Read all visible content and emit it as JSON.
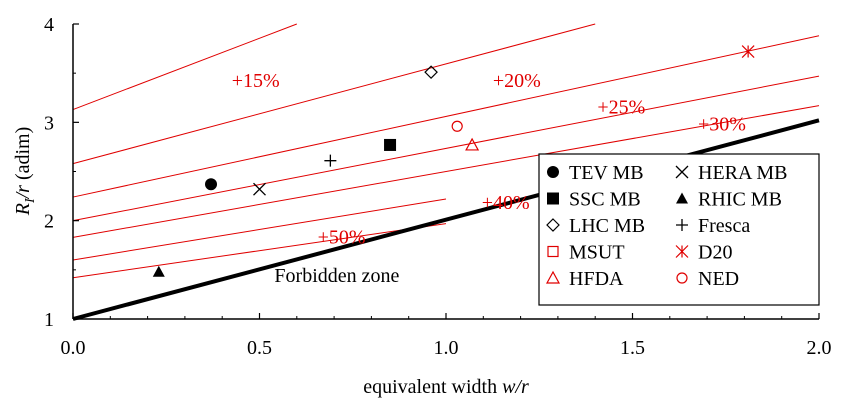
{
  "chart_data": {
    "type": "scatter",
    "xlabel": "equivalent width w/r",
    "xlabel_plain": "equivalent width ",
    "xlabel_italic": "w/r",
    "ylabel_italic": "R",
    "ylabel_sub": "I",
    "ylabel_italic2": "/r",
    "ylabel_rest": " (adim)",
    "xlim": [
      0,
      2
    ],
    "ylim": [
      1,
      4
    ],
    "x_ticks": [
      "0.0",
      "0.5",
      "1.0",
      "1.5",
      "2.0"
    ],
    "x_tick_values": [
      0,
      0.5,
      1,
      1.5,
      2
    ],
    "y_ticks": [
      "1",
      "2",
      "3",
      "4"
    ],
    "y_tick_values": [
      1,
      2,
      3,
      4
    ],
    "grid": false,
    "legend_position": "bottom-right",
    "colors": {
      "curve": "#e00000",
      "black": "#000000"
    },
    "boundary_line": {
      "x": [
        0,
        2.0
      ],
      "y": [
        1,
        3.02
      ]
    },
    "forbidden_zone_label": "Forbidden zone",
    "curves": [
      {
        "x": [
          0,
          0.6
        ],
        "y": [
          3.13,
          4.0
        ]
      },
      {
        "x": [
          0,
          1.4
        ],
        "y": [
          2.58,
          4.0
        ]
      },
      {
        "x": [
          0,
          2.0
        ],
        "y": [
          2.24,
          3.88
        ]
      },
      {
        "x": [
          0,
          2.0
        ],
        "y": [
          2.0,
          3.47
        ]
      },
      {
        "x": [
          0,
          2.0
        ],
        "y": [
          1.83,
          3.17
        ]
      },
      {
        "x": [
          0,
          1.0
        ],
        "y": [
          1.6,
          2.22
        ]
      },
      {
        "x": [
          0,
          1.0
        ],
        "y": [
          1.42,
          1.97
        ]
      }
    ],
    "curve_labels": [
      {
        "text": "+15%",
        "x": 0.49,
        "y": 3.43
      },
      {
        "text": "+20%",
        "x": 1.19,
        "y": 3.43
      },
      {
        "text": "+25%",
        "x": 1.47,
        "y": 3.16
      },
      {
        "text": "+30%",
        "x": 1.74,
        "y": 2.99
      },
      {
        "text": "+40%",
        "x": 1.16,
        "y": 2.19
      },
      {
        "text": "+50%",
        "x": 0.72,
        "y": 1.84
      }
    ],
    "series": [
      {
        "name": "TEV MB",
        "marker": "circle-filled",
        "color": "#000000",
        "x": [
          0.37
        ],
        "y": [
          2.37
        ]
      },
      {
        "name": "HERA MB",
        "marker": "x",
        "color": "#000000",
        "x": [
          0.5
        ],
        "y": [
          2.32
        ]
      },
      {
        "name": "SSC MB",
        "marker": "square-filled",
        "color": "#000000",
        "x": [
          0.85
        ],
        "y": [
          2.77
        ]
      },
      {
        "name": "RHIC MB",
        "marker": "triangle-filled",
        "color": "#000000",
        "x": [
          0.23
        ],
        "y": [
          1.48
        ]
      },
      {
        "name": "LHC MB",
        "marker": "diamond-open",
        "color": "#000000",
        "x": [
          0.96
        ],
        "y": [
          3.51
        ]
      },
      {
        "name": "Fresca",
        "marker": "plus",
        "color": "#000000",
        "x": [
          0.69
        ],
        "y": [
          2.61
        ]
      },
      {
        "name": "MSUT",
        "marker": "square-open",
        "color": "#e00000",
        "x": [],
        "y": []
      },
      {
        "name": "D20",
        "marker": "asterisk",
        "color": "#e00000",
        "x": [
          1.81
        ],
        "y": [
          3.72
        ]
      },
      {
        "name": "HFDA",
        "marker": "triangle-open",
        "color": "#e00000",
        "x": [
          1.07
        ],
        "y": [
          2.77
        ]
      },
      {
        "name": "NED",
        "marker": "circle-open",
        "color": "#e00000",
        "x": [
          1.03
        ],
        "y": [
          2.96
        ]
      }
    ]
  }
}
